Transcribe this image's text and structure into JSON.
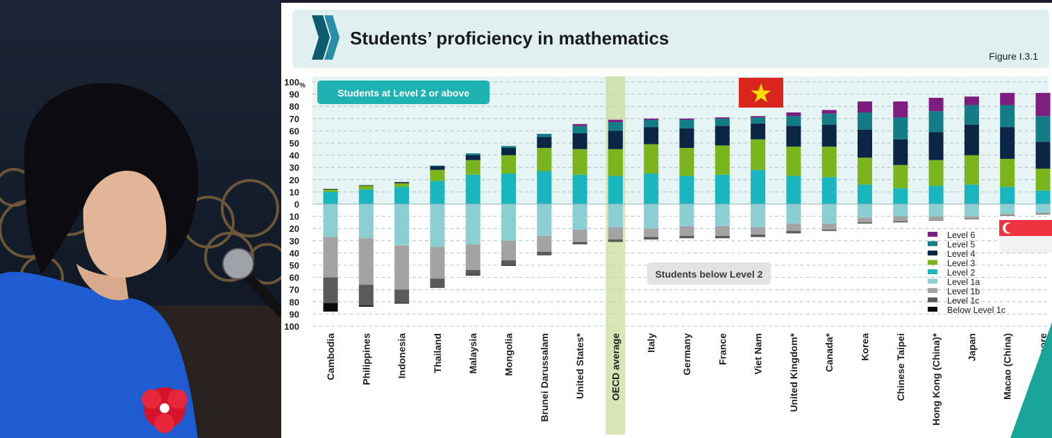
{
  "slide": {
    "title": "Students’ proficiency in mathematics",
    "figure_label": "Figure I.3.1"
  },
  "annotations": {
    "above": "Students at Level 2 or above",
    "below": "Students below Level 2"
  },
  "colors": {
    "title_band": "#dff0ef",
    "above_band": "#e6f4f3",
    "above_box": "#1fb2b2",
    "below_box": "#e3e3e3",
    "highlight": "#c8dc96",
    "vietnam_flag_red": "#da251d",
    "vietnam_flag_star": "#ffde00",
    "singapore_flag_red": "#ef3340",
    "logo": "#0e5a6e"
  },
  "chart_data": {
    "type": "bar",
    "stacked": "diverging",
    "title": "",
    "y_unit": "%",
    "ylim": [
      -100,
      100
    ],
    "y_ticks": [
      {
        "value": 100,
        "label": "100"
      },
      {
        "value": 90,
        "label": "90"
      },
      {
        "value": 80,
        "label": "80"
      },
      {
        "value": 70,
        "label": "70"
      },
      {
        "value": 60,
        "label": "60"
      },
      {
        "value": 50,
        "label": "50"
      },
      {
        "value": 40,
        "label": "40"
      },
      {
        "value": 30,
        "label": "30"
      },
      {
        "value": 20,
        "label": "20"
      },
      {
        "value": 10,
        "label": "10"
      },
      {
        "value": 0,
        "label": "0"
      },
      {
        "value": -10,
        "label": "10"
      },
      {
        "value": -20,
        "label": "20"
      },
      {
        "value": -30,
        "label": "30"
      },
      {
        "value": -40,
        "label": "40"
      },
      {
        "value": -50,
        "label": "50"
      },
      {
        "value": -60,
        "label": "60"
      },
      {
        "value": -70,
        "label": "70"
      },
      {
        "value": -80,
        "label": "80"
      },
      {
        "value": -90,
        "label": "90"
      },
      {
        "value": -100,
        "label": "100"
      }
    ],
    "grid": true,
    "legend_position": "right",
    "highlight_category": "OECD average",
    "categories": [
      "Cambodia",
      "Philippines",
      "Indonesia",
      "Thailand",
      "Malaysia",
      "Mongolia",
      "Brunei Darussalam",
      "United States*",
      "OECD average",
      "Italy",
      "Germany",
      "France",
      "Viet Nam",
      "United Kingdom*",
      "Canada*",
      "Korea",
      "Chinese Taipei",
      "Hong Kong (China)*",
      "Japan",
      "Macao (China)",
      "Singapore"
    ],
    "above_series": [
      {
        "name": "Level 2",
        "color": "#19b6c0",
        "values": [
          10,
          12,
          14,
          19,
          24,
          25,
          27,
          24,
          23,
          25,
          23,
          24,
          28,
          23,
          22,
          16,
          13,
          15,
          16,
          14,
          11
        ]
      },
      {
        "name": "Level 3",
        "color": "#7ab51d",
        "values": [
          2,
          3,
          3,
          9,
          12,
          15,
          19,
          21,
          22,
          24,
          23,
          24,
          25,
          24,
          25,
          22,
          19,
          21,
          24,
          23,
          18
        ]
      },
      {
        "name": "Level 4",
        "color": "#0b2545",
        "values": [
          0.5,
          0.5,
          1,
          3,
          4,
          6,
          9,
          13,
          15,
          14,
          16,
          16,
          13,
          17,
          18,
          23,
          21,
          23,
          25,
          26,
          22
        ]
      },
      {
        "name": "Level 5",
        "color": "#137c86",
        "values": [
          0,
          0,
          0,
          0.5,
          1.5,
          1.5,
          2.5,
          6,
          7,
          6,
          7,
          6,
          5,
          8,
          9,
          14,
          18,
          17,
          16,
          18,
          21
        ]
      },
      {
        "name": "Level 6",
        "color": "#7d1d7f",
        "values": [
          0,
          0,
          0,
          0,
          0,
          0,
          0,
          1.5,
          2,
          1,
          1,
          1,
          1,
          3,
          3,
          9,
          13,
          11,
          7,
          10,
          19
        ]
      }
    ],
    "below_series": [
      {
        "name": "Level 1a",
        "color": "#8ccfd2",
        "values": [
          27,
          28,
          34,
          35,
          33,
          30,
          26,
          21,
          19,
          20,
          18,
          18,
          19,
          16,
          16,
          11,
          10,
          10,
          10,
          8,
          7
        ]
      },
      {
        "name": "Level 1b",
        "color": "#a3a3a3",
        "values": [
          33,
          38,
          36,
          26,
          21,
          16,
          13,
          10,
          10,
          7,
          8,
          8,
          6,
          6,
          5,
          4,
          4,
          3,
          2,
          1,
          1
        ]
      },
      {
        "name": "Level 1c",
        "color": "#5a5a5a",
        "values": [
          21,
          17,
          11,
          7,
          4,
          4,
          3,
          2,
          2,
          2,
          2,
          2,
          2,
          2,
          1,
          1,
          1,
          0.5,
          0.5,
          0.5,
          0.5
        ]
      },
      {
        "name": "Below Level 1c",
        "color": "#0a0a0a",
        "values": [
          7,
          1,
          0.5,
          0.5,
          0.5,
          0.5,
          0,
          0,
          0,
          0,
          0,
          0,
          0,
          0,
          0,
          0,
          0,
          0,
          0,
          0,
          0
        ]
      }
    ],
    "legend_entries": [
      {
        "name": "Level 6",
        "color": "#7d1d7f"
      },
      {
        "name": "Level 5",
        "color": "#137c86"
      },
      {
        "name": "Level 4",
        "color": "#0b2545"
      },
      {
        "name": "Level 3",
        "color": "#7ab51d"
      },
      {
        "name": "Level 2",
        "color": "#19b6c0"
      },
      {
        "name": "Level 1a",
        "color": "#8ccfd2"
      },
      {
        "name": "Level 1b",
        "color": "#a3a3a3"
      },
      {
        "name": "Level 1c",
        "color": "#5a5a5a"
      },
      {
        "name": "Below Level 1c",
        "color": "#0a0a0a"
      }
    ]
  }
}
